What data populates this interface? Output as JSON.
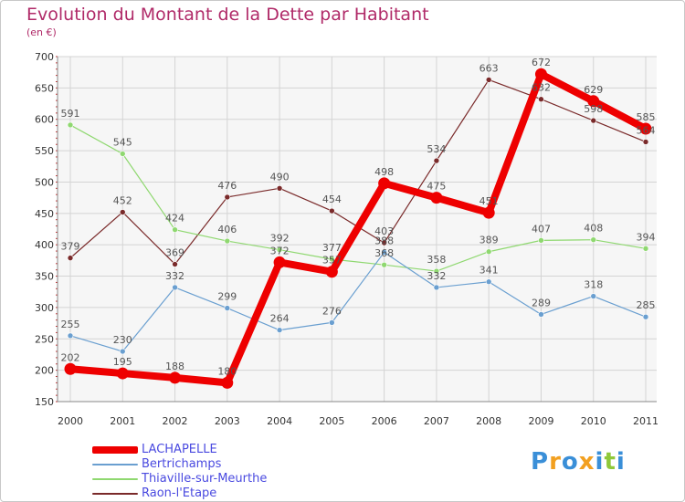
{
  "chart_data": {
    "type": "line",
    "title": "Evolution du Montant de la Dette par Habitant",
    "unit": "(en €)",
    "x": [
      "2000",
      "2001",
      "2002",
      "2003",
      "2004",
      "2005",
      "2006",
      "2007",
      "2008",
      "2009",
      "2010",
      "2011"
    ],
    "ylim": [
      150,
      700
    ],
    "yticks": [
      150,
      200,
      250,
      300,
      350,
      400,
      450,
      500,
      550,
      600,
      650,
      700
    ],
    "grid": true,
    "legend_position": "bottom-left",
    "series": [
      {
        "name": "Raon-l'Etape",
        "color": "#7a2a2a",
        "width": 1.2,
        "values": [
          379,
          452,
          369,
          476,
          490,
          454,
          403,
          534,
          663,
          632,
          598,
          564
        ]
      },
      {
        "name": "Thiaville-sur-Meurthe",
        "color": "#8fd870",
        "width": 1.2,
        "values": [
          591,
          545,
          424,
          406,
          392,
          377,
          368,
          358,
          389,
          407,
          408,
          394
        ]
      },
      {
        "name": "Bertrichamps",
        "color": "#6a9fd0",
        "width": 1.2,
        "values": [
          255,
          230,
          332,
          299,
          264,
          276,
          388,
          332,
          341,
          289,
          318,
          285
        ]
      },
      {
        "name": "LACHAPELLE",
        "color": "#ee0000",
        "width": 8,
        "values": [
          202,
          195,
          188,
          180,
          372,
          357,
          498,
          475,
          451,
          672,
          629,
          585
        ]
      }
    ],
    "legend_order": [
      "LACHAPELLE",
      "Bertrichamps",
      "Thiaville-sur-Meurthe",
      "Raon-l'Etape"
    ]
  },
  "logo": {
    "letters": [
      "P",
      "r",
      "o",
      "x",
      "i",
      "t",
      "i"
    ],
    "colors": [
      "#3a8fd8",
      "#f2a020",
      "#3a8fd8",
      "#f2a020",
      "#3a8fd8",
      "#8fc83a",
      "#3a8fd8"
    ]
  }
}
